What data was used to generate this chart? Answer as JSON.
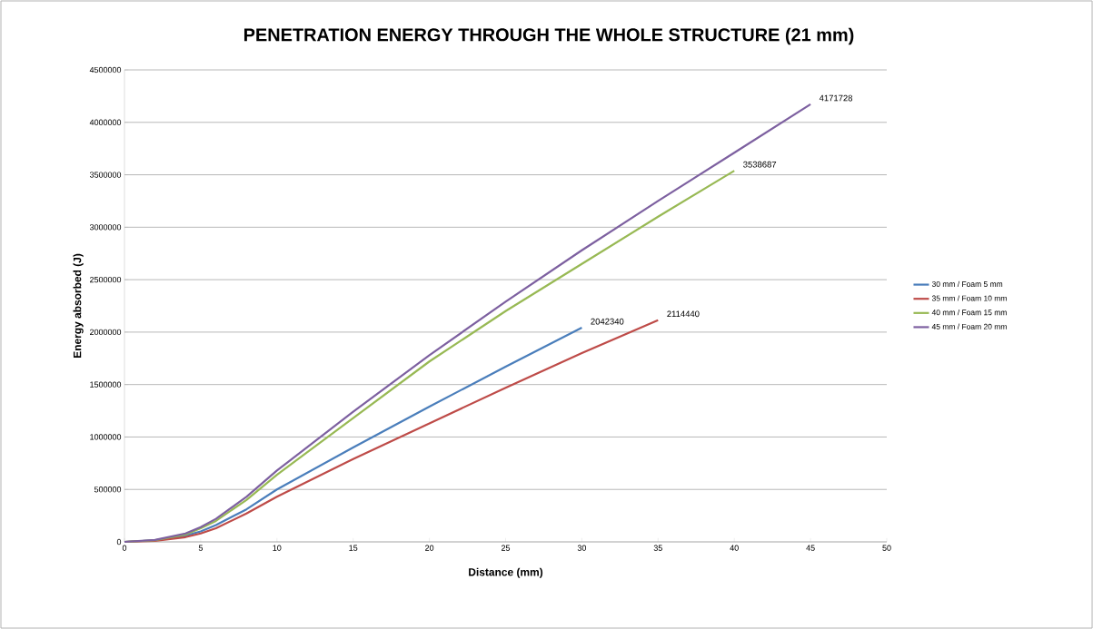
{
  "chart_data": {
    "type": "line",
    "title": "PENETRATION ENERGY THROUGH  THE WHOLE STRUCTURE (21 mm)",
    "xlabel": "Distance (mm)",
    "ylabel": "Energy absorbed (J)",
    "xlim": [
      0,
      50
    ],
    "xticks": [
      0,
      5,
      10,
      15,
      20,
      25,
      30,
      35,
      40,
      45,
      50
    ],
    "ylim": [
      0,
      4500000
    ],
    "yticks": [
      0,
      500000,
      1000000,
      1500000,
      2000000,
      2500000,
      3000000,
      3500000,
      4000000,
      4500000
    ],
    "grid": "y",
    "legend": "right",
    "marker": "none",
    "line_style": "solid",
    "series": [
      {
        "name": "30 mm / Foam 5 mm",
        "color": "#4a7ebb",
        "x": [
          0,
          2,
          4,
          5,
          6,
          8,
          10,
          15,
          20,
          25,
          30
        ],
        "values": [
          0,
          15000,
          60000,
          100000,
          160000,
          310000,
          500000,
          900000,
          1290000,
          1670000,
          2042340
        ]
      },
      {
        "name": "35 mm / Foam 10 mm",
        "color": "#be4b48",
        "x": [
          0,
          2,
          4,
          5,
          6,
          8,
          10,
          15,
          20,
          25,
          30,
          35
        ],
        "values": [
          0,
          10000,
          45000,
          80000,
          130000,
          270000,
          430000,
          790000,
          1130000,
          1470000,
          1800000,
          2114440
        ]
      },
      {
        "name": "40 mm / Foam 15 mm",
        "color": "#98b954",
        "x": [
          0,
          2,
          4,
          5,
          6,
          8,
          10,
          15,
          20,
          25,
          30,
          35,
          40
        ],
        "values": [
          0,
          15000,
          70000,
          130000,
          200000,
          400000,
          640000,
          1180000,
          1720000,
          2200000,
          2650000,
          3100000,
          3538687
        ]
      },
      {
        "name": "45 mm / Foam 20 mm",
        "color": "#7d60a0",
        "x": [
          0,
          2,
          4,
          5,
          6,
          8,
          10,
          15,
          20,
          25,
          30,
          35,
          40,
          45
        ],
        "values": [
          0,
          18000,
          80000,
          140000,
          220000,
          430000,
          680000,
          1240000,
          1780000,
          2290000,
          2780000,
          3250000,
          3710000,
          4171728
        ]
      }
    ],
    "annotations": [
      {
        "text": "2042340",
        "x": 30,
        "y": 2042340
      },
      {
        "text": "2114440",
        "x": 35,
        "y": 2114440
      },
      {
        "text": "3538687",
        "x": 40,
        "y": 3538687
      },
      {
        "text": "4171728",
        "x": 45,
        "y": 4171728
      }
    ]
  }
}
